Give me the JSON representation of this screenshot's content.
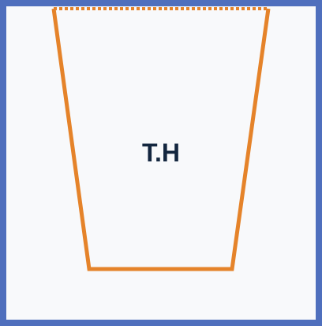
{
  "shape": {
    "label": "T.H",
    "type": "trapezoid",
    "orientation": "inverted"
  },
  "colors": {
    "frame": "#4f6fbd",
    "background": "#f8f9fb",
    "shape_outline": "#e5832a",
    "label_text": "#13263f"
  }
}
